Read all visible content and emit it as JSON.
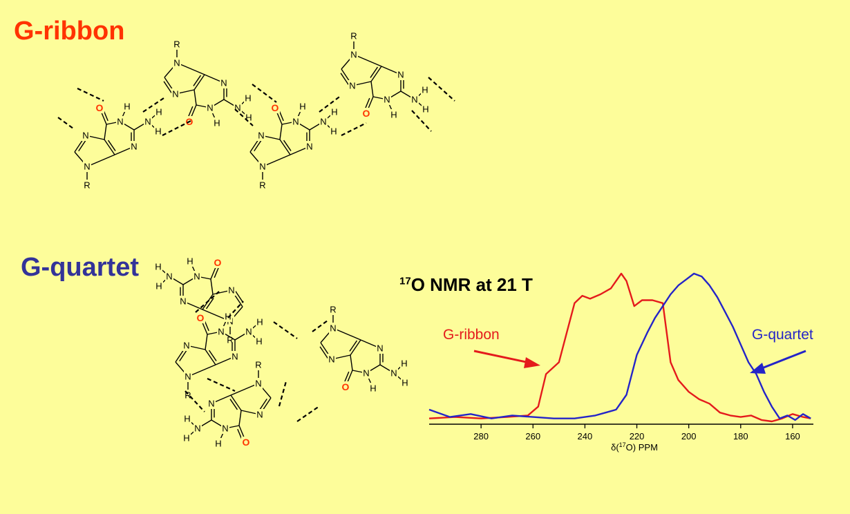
{
  "titles": {
    "ribbon": "G-ribbon",
    "quartet": "G-quartet"
  },
  "nmr": {
    "title_prefix": "17",
    "title_main": "O NMR at 21 T",
    "xlabel_a": "δ(",
    "xlabel_sup": "17",
    "xlabel_b": "O) PPM",
    "label_ribbon": "G-ribbon",
    "label_quartet": "G-quartet"
  },
  "atoms": {
    "N": "N",
    "H": "H",
    "R": "R",
    "O": "O"
  },
  "colors": {
    "background": "#fdfd9a",
    "ribbon": "#e41a1c",
    "quartet": "#2424c8",
    "ribbon_title": "#ff3300",
    "quartet_title": "#333399"
  },
  "chart_data": {
    "type": "line",
    "title": "17O NMR at 21 T",
    "xlabel": "δ(17O) PPM",
    "ylabel": "",
    "xlim": [
      300,
      152
    ],
    "x_reversed": true,
    "xticks": [
      280,
      260,
      240,
      220,
      200,
      180,
      160
    ],
    "series": [
      {
        "name": "G-ribbon",
        "color": "#e41a1c",
        "x": [
          300,
          290,
          280,
          270,
          262,
          258,
          255,
          250,
          247,
          244,
          241,
          238,
          234,
          230,
          226,
          224,
          221,
          218,
          214,
          210,
          207,
          204,
          200,
          196,
          192,
          188,
          184,
          180,
          176,
          172,
          168,
          164,
          160,
          156,
          153
        ],
        "y": [
          2,
          3,
          2,
          3,
          4,
          10,
          32,
          40,
          60,
          80,
          85,
          83,
          86,
          90,
          100,
          95,
          78,
          82,
          82,
          80,
          40,
          28,
          20,
          15,
          12,
          6,
          4,
          3,
          4,
          1,
          0,
          2,
          5,
          3,
          2
        ]
      },
      {
        "name": "G-quartet",
        "color": "#2424c8",
        "x": [
          300,
          292,
          284,
          276,
          268,
          260,
          252,
          244,
          236,
          232,
          228,
          224,
          220,
          216,
          213,
          210,
          207,
          204,
          201,
          198,
          195,
          192,
          189,
          186,
          183,
          180,
          177,
          174,
          171,
          168,
          165,
          162,
          159,
          156,
          153
        ],
        "y": [
          8,
          3,
          5,
          2,
          4,
          3,
          2,
          2,
          4,
          6,
          8,
          18,
          45,
          60,
          70,
          78,
          86,
          92,
          96,
          100,
          98,
          92,
          84,
          74,
          64,
          52,
          40,
          32,
          20,
          10,
          2,
          4,
          1,
          5,
          2
        ]
      }
    ]
  }
}
